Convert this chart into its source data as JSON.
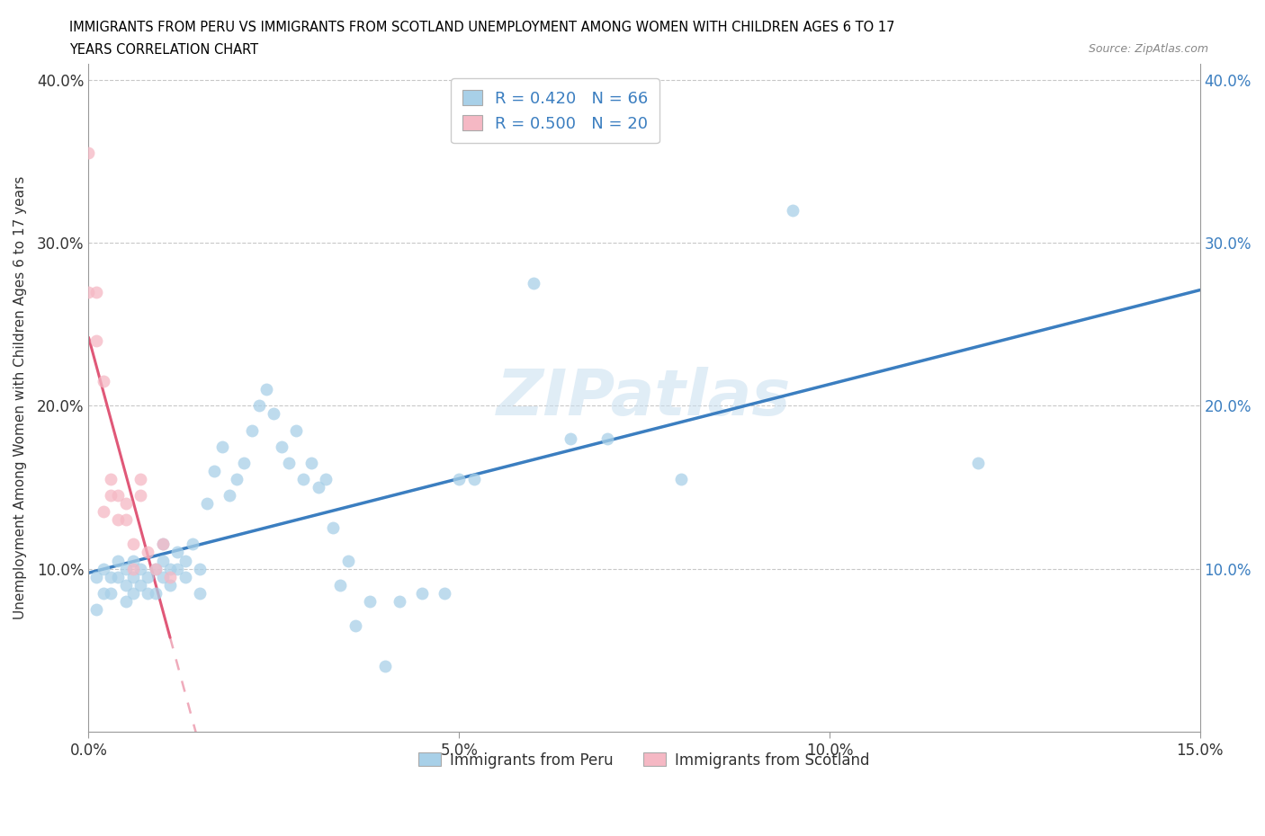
{
  "title_line1": "IMMIGRANTS FROM PERU VS IMMIGRANTS FROM SCOTLAND UNEMPLOYMENT AMONG WOMEN WITH CHILDREN AGES 6 TO 17",
  "title_line2": "YEARS CORRELATION CHART",
  "source": "Source: ZipAtlas.com",
  "ylabel": "Unemployment Among Women with Children Ages 6 to 17 years",
  "xlim": [
    0.0,
    0.15
  ],
  "ylim": [
    0.0,
    0.41
  ],
  "xticks": [
    0.0,
    0.05,
    0.1,
    0.15
  ],
  "yticks": [
    0.1,
    0.2,
    0.3,
    0.4
  ],
  "xticklabels": [
    "0.0%",
    "5.0%",
    "10.0%",
    "15.0%"
  ],
  "yticklabels": [
    "10.0%",
    "20.0%",
    "30.0%",
    "40.0%"
  ],
  "legend_label_peru": "Immigrants from Peru",
  "legend_label_scotland": "Immigrants from Scotland",
  "peru_color": "#a8d0e8",
  "scotland_color": "#f5b8c4",
  "peru_line_color": "#3b7ec0",
  "scotland_line_color": "#e05878",
  "peru_r": 0.42,
  "peru_n": 66,
  "scotland_r": 0.5,
  "scotland_n": 20,
  "watermark": "ZIPatlas",
  "peru_x": [
    0.001,
    0.001,
    0.002,
    0.002,
    0.003,
    0.003,
    0.004,
    0.004,
    0.005,
    0.005,
    0.005,
    0.006,
    0.006,
    0.006,
    0.007,
    0.007,
    0.008,
    0.008,
    0.009,
    0.009,
    0.01,
    0.01,
    0.01,
    0.011,
    0.011,
    0.012,
    0.012,
    0.013,
    0.013,
    0.014,
    0.015,
    0.015,
    0.016,
    0.017,
    0.018,
    0.019,
    0.02,
    0.021,
    0.022,
    0.023,
    0.024,
    0.025,
    0.026,
    0.027,
    0.028,
    0.029,
    0.03,
    0.031,
    0.032,
    0.033,
    0.034,
    0.035,
    0.036,
    0.038,
    0.04,
    0.042,
    0.045,
    0.048,
    0.05,
    0.052,
    0.06,
    0.065,
    0.07,
    0.08,
    0.095,
    0.12
  ],
  "peru_y": [
    0.095,
    0.075,
    0.085,
    0.1,
    0.095,
    0.085,
    0.095,
    0.105,
    0.09,
    0.1,
    0.08,
    0.085,
    0.095,
    0.105,
    0.09,
    0.1,
    0.085,
    0.095,
    0.085,
    0.1,
    0.095,
    0.105,
    0.115,
    0.09,
    0.1,
    0.1,
    0.11,
    0.095,
    0.105,
    0.115,
    0.1,
    0.085,
    0.14,
    0.16,
    0.175,
    0.145,
    0.155,
    0.165,
    0.185,
    0.2,
    0.21,
    0.195,
    0.175,
    0.165,
    0.185,
    0.155,
    0.165,
    0.15,
    0.155,
    0.125,
    0.09,
    0.105,
    0.065,
    0.08,
    0.04,
    0.08,
    0.085,
    0.085,
    0.155,
    0.155,
    0.275,
    0.18,
    0.18,
    0.155,
    0.32,
    0.165
  ],
  "scotland_x": [
    0.0,
    0.0,
    0.001,
    0.001,
    0.002,
    0.002,
    0.003,
    0.003,
    0.004,
    0.004,
    0.005,
    0.005,
    0.006,
    0.006,
    0.007,
    0.007,
    0.008,
    0.009,
    0.01,
    0.011
  ],
  "scotland_y": [
    0.355,
    0.27,
    0.27,
    0.24,
    0.215,
    0.135,
    0.145,
    0.155,
    0.13,
    0.145,
    0.13,
    0.14,
    0.1,
    0.115,
    0.145,
    0.155,
    0.11,
    0.1,
    0.115,
    0.095
  ]
}
